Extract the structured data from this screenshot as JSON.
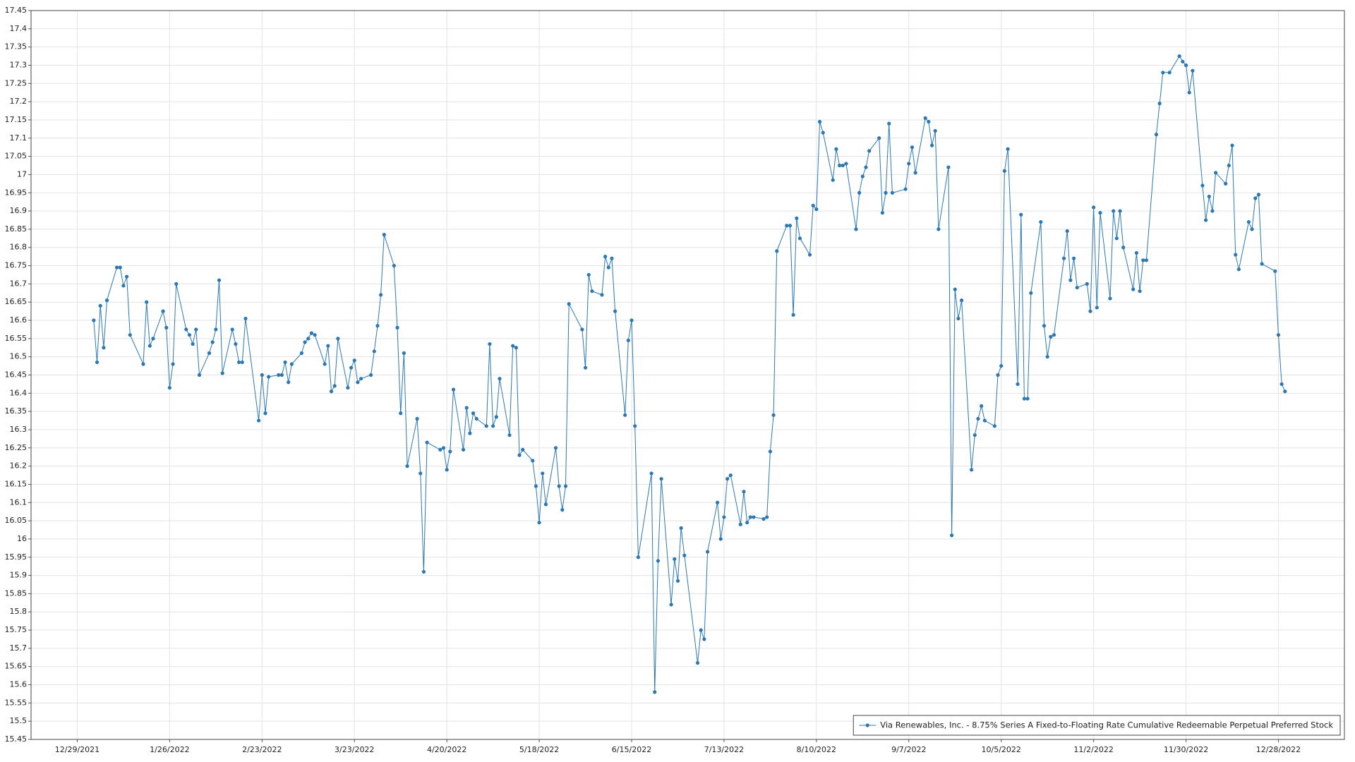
{
  "chart_data": {
    "type": "line",
    "x": [
      "1/3/2022",
      "1/4/2022",
      "1/5/2022",
      "1/6/2022",
      "1/7/2022",
      "1/10/2022",
      "1/11/2022",
      "1/12/2022",
      "1/13/2022",
      "1/14/2022",
      "1/18/2022",
      "1/19/2022",
      "1/20/2022",
      "1/21/2022",
      "1/24/2022",
      "1/25/2022",
      "1/26/2022",
      "1/27/2022",
      "1/28/2022",
      "1/31/2022",
      "2/1/2022",
      "2/2/2022",
      "2/3/2022",
      "2/4/2022",
      "2/7/2022",
      "2/8/2022",
      "2/9/2022",
      "2/10/2022",
      "2/11/2022",
      "2/14/2022",
      "2/15/2022",
      "2/16/2022",
      "2/17/2022",
      "2/18/2022",
      "2/22/2022",
      "2/23/2022",
      "2/24/2022",
      "2/25/2022",
      "2/28/2022",
      "3/1/2022",
      "3/2/2022",
      "3/3/2022",
      "3/4/2022",
      "3/7/2022",
      "3/8/2022",
      "3/9/2022",
      "3/10/2022",
      "3/11/2022",
      "3/14/2022",
      "3/15/2022",
      "3/16/2022",
      "3/17/2022",
      "3/18/2022",
      "3/21/2022",
      "3/22/2022",
      "3/23/2022",
      "3/24/2022",
      "3/25/2022",
      "3/28/2022",
      "3/29/2022",
      "3/30/2022",
      "3/31/2022",
      "4/1/2022",
      "4/4/2022",
      "4/5/2022",
      "4/6/2022",
      "4/7/2022",
      "4/8/2022",
      "4/11/2022",
      "4/12/2022",
      "4/13/2022",
      "4/14/2022",
      "4/18/2022",
      "4/19/2022",
      "4/20/2022",
      "4/21/2022",
      "4/22/2022",
      "4/25/2022",
      "4/26/2022",
      "4/27/2022",
      "4/28/2022",
      "4/29/2022",
      "5/2/2022",
      "5/3/2022",
      "5/4/2022",
      "5/5/2022",
      "5/6/2022",
      "5/9/2022",
      "5/10/2022",
      "5/11/2022",
      "5/12/2022",
      "5/13/2022",
      "5/16/2022",
      "5/17/2022",
      "5/18/2022",
      "5/19/2022",
      "5/20/2022",
      "5/23/2022",
      "5/24/2022",
      "5/25/2022",
      "5/26/2022",
      "5/27/2022",
      "5/31/2022",
      "6/1/2022",
      "6/2/2022",
      "6/3/2022",
      "6/6/2022",
      "6/7/2022",
      "6/8/2022",
      "6/9/2022",
      "6/10/2022",
      "6/13/2022",
      "6/14/2022",
      "6/15/2022",
      "6/16/2022",
      "6/17/2022",
      "6/21/2022",
      "6/22/2022",
      "6/23/2022",
      "6/24/2022",
      "6/27/2022",
      "6/28/2022",
      "6/29/2022",
      "6/30/2022",
      "7/1/2022",
      "7/5/2022",
      "7/6/2022",
      "7/7/2022",
      "7/8/2022",
      "7/11/2022",
      "7/12/2022",
      "7/13/2022",
      "7/14/2022",
      "7/15/2022",
      "7/18/2022",
      "7/19/2022",
      "7/20/2022",
      "7/21/2022",
      "7/22/2022",
      "7/25/2022",
      "7/26/2022",
      "7/27/2022",
      "7/28/2022",
      "7/29/2022",
      "8/1/2022",
      "8/2/2022",
      "8/3/2022",
      "8/4/2022",
      "8/5/2022",
      "8/8/2022",
      "8/9/2022",
      "8/10/2022",
      "8/11/2022",
      "8/12/2022",
      "8/15/2022",
      "8/16/2022",
      "8/17/2022",
      "8/18/2022",
      "8/19/2022",
      "8/22/2022",
      "8/23/2022",
      "8/24/2022",
      "8/25/2022",
      "8/26/2022",
      "8/29/2022",
      "8/30/2022",
      "8/31/2022",
      "9/1/2022",
      "9/2/2022",
      "9/6/2022",
      "9/7/2022",
      "9/8/2022",
      "9/9/2022",
      "9/12/2022",
      "9/13/2022",
      "9/14/2022",
      "9/15/2022",
      "9/16/2022",
      "9/19/2022",
      "9/20/2022",
      "9/21/2022",
      "9/22/2022",
      "9/23/2022",
      "9/26/2022",
      "9/27/2022",
      "9/28/2022",
      "9/29/2022",
      "9/30/2022",
      "10/3/2022",
      "10/4/2022",
      "10/5/2022",
      "10/6/2022",
      "10/7/2022",
      "10/10/2022",
      "10/11/2022",
      "10/12/2022",
      "10/13/2022",
      "10/14/2022",
      "10/17/2022",
      "10/18/2022",
      "10/19/2022",
      "10/20/2022",
      "10/21/2022",
      "10/24/2022",
      "10/25/2022",
      "10/26/2022",
      "10/27/2022",
      "10/28/2022",
      "10/31/2022",
      "11/1/2022",
      "11/2/2022",
      "11/3/2022",
      "11/4/2022",
      "11/7/2022",
      "11/8/2022",
      "11/9/2022",
      "11/10/2022",
      "11/11/2022",
      "11/14/2022",
      "11/15/2022",
      "11/16/2022",
      "11/17/2022",
      "11/18/2022",
      "11/21/2022",
      "11/22/2022",
      "11/23/2022",
      "11/25/2022",
      "11/28/2022",
      "11/29/2022",
      "11/30/2022",
      "12/1/2022",
      "12/2/2022",
      "12/5/2022",
      "12/6/2022",
      "12/7/2022",
      "12/8/2022",
      "12/9/2022",
      "12/12/2022",
      "12/13/2022",
      "12/14/2022",
      "12/15/2022",
      "12/16/2022",
      "12/19/2022",
      "12/20/2022",
      "12/21/2022",
      "12/22/2022",
      "12/23/2022",
      "12/27/2022",
      "12/28/2022",
      "12/29/2022",
      "12/30/2022"
    ],
    "series": [
      {
        "name": "Via Renewables, Inc. - 8.75% Series A Fixed-to-Floating Rate Cumulative Redeemable Perpetual Preferred Stock",
        "color": "#2b78b3",
        "values": [
          16.6,
          16.485,
          16.64,
          16.525,
          16.655,
          16.745,
          16.745,
          16.695,
          16.72,
          16.56,
          16.48,
          16.65,
          16.53,
          16.55,
          16.625,
          16.58,
          16.415,
          16.48,
          16.7,
          16.575,
          16.56,
          16.535,
          16.575,
          16.45,
          16.51,
          16.54,
          16.575,
          16.71,
          16.455,
          16.575,
          16.535,
          16.485,
          16.485,
          16.605,
          16.325,
          16.45,
          16.345,
          16.445,
          16.45,
          16.45,
          16.485,
          16.43,
          16.48,
          16.51,
          16.54,
          16.55,
          16.565,
          16.56,
          16.48,
          16.53,
          16.405,
          16.42,
          16.55,
          16.415,
          16.47,
          16.49,
          16.43,
          16.44,
          16.45,
          16.515,
          16.585,
          16.67,
          16.835,
          16.75,
          16.58,
          16.345,
          16.51,
          16.2,
          16.33,
          16.18,
          15.91,
          16.265,
          16.245,
          16.25,
          16.19,
          16.24,
          16.41,
          16.245,
          16.36,
          16.29,
          16.345,
          16.33,
          16.31,
          16.535,
          16.31,
          16.335,
          16.44,
          16.285,
          16.53,
          16.525,
          16.23,
          16.245,
          16.215,
          16.145,
          16.045,
          16.18,
          16.095,
          16.25,
          16.145,
          16.08,
          16.145,
          16.645,
          16.575,
          16.47,
          16.725,
          16.68,
          16.67,
          16.775,
          16.745,
          16.77,
          16.625,
          16.34,
          16.545,
          16.6,
          16.31,
          15.95,
          16.18,
          15.58,
          15.94,
          16.165,
          15.82,
          15.945,
          15.885,
          16.03,
          15.955,
          15.66,
          15.75,
          15.725,
          15.965,
          16.1,
          16.0,
          16.06,
          16.165,
          16.175,
          16.04,
          16.13,
          16.045,
          16.06,
          16.06,
          16.055,
          16.06,
          16.24,
          16.34,
          16.79,
          16.86,
          16.86,
          16.615,
          16.88,
          16.825,
          16.78,
          16.915,
          16.905,
          17.145,
          17.115,
          16.985,
          17.07,
          17.025,
          17.025,
          17.03,
          16.85,
          16.95,
          16.995,
          17.02,
          17.065,
          17.1,
          16.895,
          16.95,
          17.14,
          16.95,
          16.96,
          17.03,
          17.075,
          17.005,
          17.155,
          17.145,
          17.08,
          17.12,
          16.85,
          17.02,
          16.01,
          16.685,
          16.605,
          16.655,
          16.19,
          16.285,
          16.33,
          16.365,
          16.325,
          16.31,
          16.45,
          16.475,
          17.01,
          17.07,
          16.425,
          16.89,
          16.385,
          16.385,
          16.675,
          16.87,
          16.585,
          16.5,
          16.555,
          16.56,
          16.77,
          16.845,
          16.71,
          16.77,
          16.69,
          16.7,
          16.625,
          16.91,
          16.635,
          16.895,
          16.66,
          16.9,
          16.825,
          16.9,
          16.8,
          16.685,
          16.785,
          16.68,
          16.765,
          16.765,
          17.11,
          17.195,
          17.28,
          17.28,
          17.325,
          17.31,
          17.3,
          17.225,
          17.285,
          16.97,
          16.875,
          16.94,
          16.9,
          17.005,
          16.975,
          17.025,
          17.08,
          16.78,
          16.74,
          16.87,
          16.85,
          16.935,
          16.945,
          16.755,
          16.735,
          16.56,
          16.425,
          16.405
        ]
      }
    ],
    "xlim": [
      "12/15/2021",
      "1/17/2023"
    ],
    "xticks": [
      "12/29/2021",
      "1/26/2022",
      "2/23/2022",
      "3/23/2022",
      "4/20/2022",
      "5/18/2022",
      "6/15/2022",
      "7/13/2022",
      "8/10/2022",
      "9/7/2022",
      "10/5/2022",
      "11/2/2022",
      "11/30/2022",
      "12/28/2022"
    ],
    "ylim": [
      15.45,
      17.45
    ],
    "yticks": [
      15.45,
      15.5,
      15.55,
      15.6,
      15.65,
      15.7,
      15.75,
      15.8,
      15.85,
      15.9,
      15.95,
      16,
      16.05,
      16.1,
      16.15,
      16.2,
      16.25,
      16.3,
      16.35,
      16.4,
      16.45,
      16.5,
      16.55,
      16.6,
      16.65,
      16.7,
      16.75,
      16.8,
      16.85,
      16.9,
      16.95,
      17,
      17.05,
      17.1,
      17.15,
      17.2,
      17.25,
      17.3,
      17.35,
      17.4,
      17.45
    ],
    "grid": true,
    "legend": "lower right"
  }
}
